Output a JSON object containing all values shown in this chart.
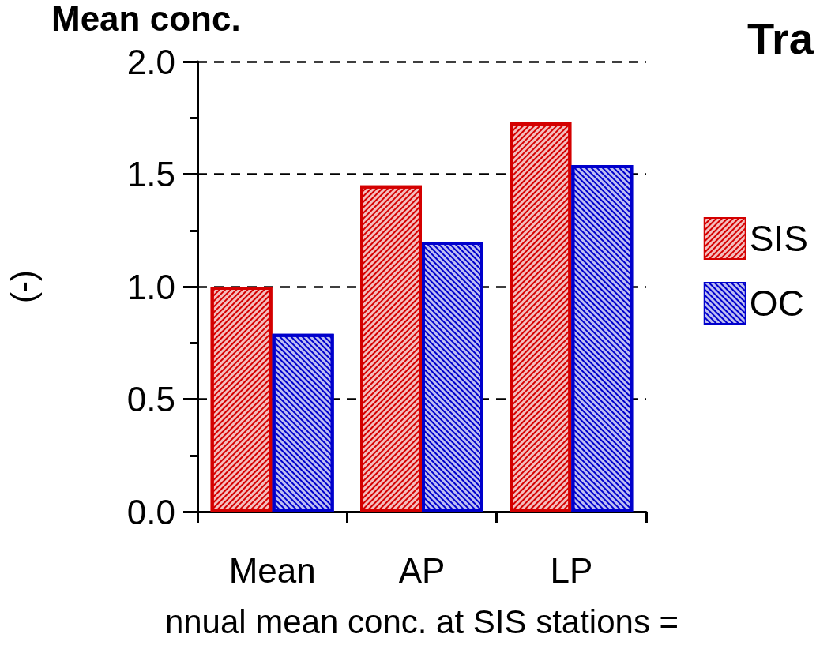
{
  "chart_data": {
    "type": "bar",
    "title": "Mean conc.",
    "xlabel": "nnual mean conc. at SIS stations =",
    "ylabel": "(-)",
    "annotations": [
      "Tra"
    ],
    "categories": [
      "Mean",
      "AP",
      "LP"
    ],
    "series": [
      {
        "name": "SIS",
        "color": "#d40000",
        "values": [
          1.0,
          1.45,
          1.73
        ]
      },
      {
        "name": "OC",
        "color": "#0000cc",
        "values": [
          0.79,
          1.2,
          1.54
        ]
      }
    ],
    "ylim": [
      0,
      2
    ],
    "yticks": [
      {
        "value": 0,
        "label": "0.0"
      },
      {
        "value": 0.25,
        "label": null
      },
      0.5,
      {
        "value": 0.75,
        "label": null
      },
      {
        "value": 1,
        "label": "1.0"
      },
      {
        "value": 1.25,
        "label": null
      },
      1.5,
      {
        "value": 1.75,
        "label": null
      },
      {
        "value": 2,
        "label": "2.0"
      }
    ],
    "grid": "y",
    "legend": "right"
  }
}
